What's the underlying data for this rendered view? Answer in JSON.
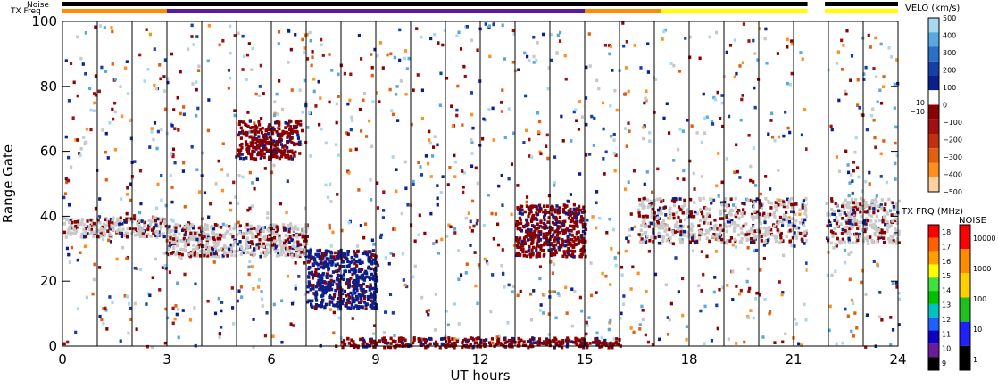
{
  "chart_data": {
    "type": "heatmap",
    "xlabel": "UT hours",
    "ylabel": "Range Gate",
    "xlim": [
      0,
      24
    ],
    "ylim": [
      0,
      100
    ],
    "x_ticks": [
      "0",
      "3",
      "6",
      "9",
      "12",
      "15",
      "18",
      "21",
      "24"
    ],
    "x_tick_values": [
      0,
      3,
      6,
      9,
      12,
      15,
      18,
      21,
      24
    ],
    "y_ticks": [
      "0",
      "20",
      "40",
      "60",
      "80",
      "100"
    ],
    "y_tick_values": [
      0,
      20,
      40,
      60,
      80,
      100
    ],
    "scan_boundaries_ut": [
      0,
      1,
      2,
      3,
      4,
      5,
      6,
      7,
      8,
      9,
      10,
      11,
      12,
      13,
      14,
      15,
      16,
      17,
      18,
      19,
      20,
      21,
      22,
      23,
      24
    ],
    "strip_labels": {
      "noise": "Noise",
      "tx_freq": "TX Freq"
    },
    "noise_strip": [
      {
        "start": 0,
        "end": 21.4,
        "color": "#000000"
      },
      {
        "start": 21.9,
        "end": 24,
        "color": "#000000"
      }
    ],
    "txfreq_strip": [
      {
        "start": 0,
        "end": 3,
        "color": "#ff8c00"
      },
      {
        "start": 3,
        "end": 15,
        "color": "#5a189a"
      },
      {
        "start": 15,
        "end": 17.2,
        "color": "#ff8c00"
      },
      {
        "start": 17.2,
        "end": 21.4,
        "color": "#ffff00"
      },
      {
        "start": 21.9,
        "end": 24,
        "color": "#ffff00"
      }
    ],
    "velocity_scale": {
      "title": "VELO (km/s)",
      "ticks": [
        "500",
        "400",
        "300",
        "200",
        "100",
        "0",
        "−100",
        "−200",
        "−300",
        "−400",
        "−500"
      ],
      "tick_values": [
        500,
        400,
        300,
        200,
        100,
        0,
        -100,
        -200,
        -300,
        -400,
        -500
      ],
      "side_labels": [
        "10",
        "−10"
      ],
      "colors": [
        "#a8d8f0",
        "#5aa8e0",
        "#2a70c8",
        "#1440a8",
        "#0a1f8c",
        "#ffffff",
        "#8b0000",
        "#a01010",
        "#c03010",
        "#e06010",
        "#ff9020",
        "#ffd0a0"
      ]
    },
    "txfrq_scale": {
      "title": "TX FRQ (MHz)",
      "ticks": [
        "18",
        "17",
        "16",
        "15",
        "14",
        "13",
        "12",
        "11",
        "10",
        "9"
      ],
      "colors": [
        "#ff0000",
        "#ff6000",
        "#ffa000",
        "#ffff00",
        "#40e040",
        "#00c000",
        "#00c0c0",
        "#2060ff",
        "#1000c0",
        "#6a1b9a",
        "#000000"
      ]
    },
    "noise_scale": {
      "title": "NOISE",
      "ticks": [
        "10000",
        "1000",
        "100",
        "10",
        "1"
      ],
      "colors": [
        "#ff0000",
        "#ff8c00",
        "#ffd000",
        "#20c020",
        "#2020ff",
        "#000000"
      ]
    },
    "features": [
      {
        "name": "ground scatter band A",
        "ut": [
          0,
          3
        ],
        "gate": [
          34,
          40
        ],
        "color": "#c8c8c8"
      },
      {
        "name": "ground scatter band B",
        "ut": [
          3,
          7
        ],
        "gate": [
          28,
          38
        ],
        "color": "#c8c8c8"
      },
      {
        "name": "negative velocity arc",
        "ut": [
          5,
          6.8
        ],
        "gate": [
          58,
          70
        ],
        "color": "#8b0000"
      },
      {
        "name": "positive velocity patch",
        "ut": [
          7,
          9
        ],
        "gate": [
          12,
          30
        ],
        "color": "#0a1f8c"
      },
      {
        "name": "near-range scatter",
        "ut": [
          8,
          16
        ],
        "gate": [
          0,
          3
        ],
        "color": "#8b0000"
      },
      {
        "name": "mid-range patch",
        "ut": [
          13,
          15
        ],
        "gate": [
          28,
          44
        ],
        "color": "#8b0000"
      },
      {
        "name": "ground scatter band C",
        "ut": [
          16.5,
          24
        ],
        "gate": [
          32,
          46
        ],
        "color": "#c8c8c8"
      }
    ]
  }
}
